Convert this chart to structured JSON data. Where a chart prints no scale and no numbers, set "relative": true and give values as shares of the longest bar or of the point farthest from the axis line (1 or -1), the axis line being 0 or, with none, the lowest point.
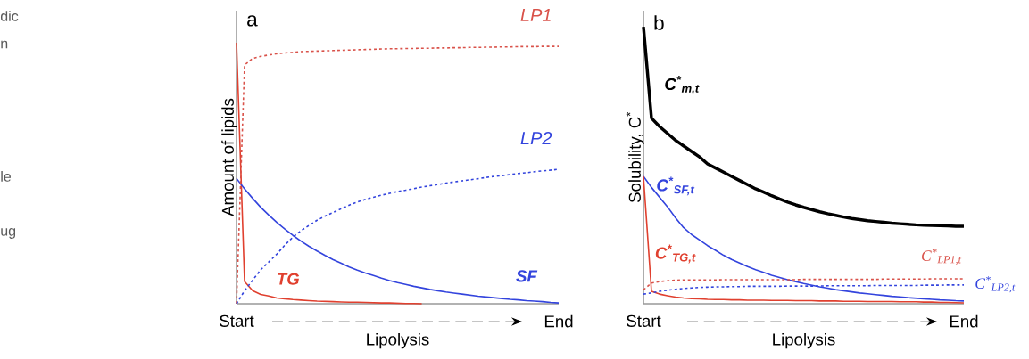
{
  "chart_data": [
    {
      "type": "other",
      "annotations": [
        "dic",
        "n",
        "le",
        "ug"
      ]
    },
    {
      "type": "line",
      "title": "a",
      "xlabel": "Lipolysis",
      "ylabel": "Amount of lipids",
      "relative": true,
      "categories": [
        "Start",
        null,
        null,
        null,
        null,
        null,
        null,
        null,
        null,
        null,
        null,
        null,
        null,
        null,
        null,
        null,
        null,
        null,
        null,
        null,
        null,
        null,
        null,
        null,
        null,
        null,
        null,
        null,
        null,
        null,
        null,
        null,
        null,
        null,
        null,
        null,
        null,
        null,
        null,
        null,
        "End"
      ],
      "series": [
        {
          "name": "TG",
          "color": "#e0402f",
          "line_style": "solid",
          "values": [
            1.0,
            0.085,
            0.05,
            0.036,
            0.03,
            0.022,
            0.019,
            0.016,
            0.014,
            0.012,
            0.01,
            0.009,
            0.008,
            0.007,
            0.006,
            0.006,
            0.005,
            0.004,
            0.003,
            0.003,
            0.002,
            0.001,
            0.001,
            0,
            null,
            null,
            null,
            null,
            null,
            null,
            null,
            null,
            null,
            null,
            null,
            null,
            null,
            null,
            null,
            null,
            null
          ]
        },
        {
          "name": "SF",
          "color": "#3344dd",
          "line_style": "solid",
          "values": [
            0.48,
            0.44,
            0.404,
            0.37,
            0.34,
            0.312,
            0.286,
            0.262,
            0.24,
            0.22,
            0.202,
            0.185,
            0.169,
            0.155,
            0.141,
            0.129,
            0.118,
            0.108,
            0.098,
            0.089,
            0.081,
            0.074,
            0.067,
            0.061,
            0.055,
            0.05,
            0.045,
            0.041,
            0.037,
            0.033,
            0.029,
            0.026,
            0.023,
            0.02,
            0.017,
            0.015,
            0.012,
            0.01,
            0.008,
            0.005,
            0.003
          ]
        },
        {
          "name": "LP1",
          "color": "#d9524a",
          "line_style": "dotted",
          "values": [
            0,
            0.915,
            0.94,
            0.948,
            0.953,
            0.958,
            0.961,
            0.963,
            0.966,
            0.967,
            0.968,
            0.969,
            0.97,
            0.971,
            0.972,
            0.973,
            0.974,
            0.975,
            0.976,
            0.977,
            0.977,
            0.978,
            0.978,
            0.979,
            0.979,
            0.98,
            0.98,
            0.981,
            0.981,
            0.982,
            0.982,
            0.983,
            0.983,
            0.984,
            0.984,
            0.985,
            0.985,
            0.985,
            0.986,
            0.986,
            0.986
          ]
        },
        {
          "name": "LP2",
          "color": "#3344dd",
          "line_style": "dotted",
          "values": [
            0,
            0.05,
            0.09,
            0.13,
            0.16,
            0.19,
            0.225,
            0.255,
            0.28,
            0.3,
            0.32,
            0.336,
            0.35,
            0.364,
            0.378,
            0.39,
            0.4,
            0.408,
            0.416,
            0.423,
            0.43,
            0.435,
            0.441,
            0.447,
            0.452,
            0.457,
            0.462,
            0.467,
            0.471,
            0.475,
            0.479,
            0.484,
            0.488,
            0.491,
            0.495,
            0.499,
            0.502,
            0.506,
            0.509,
            0.512,
            0.515
          ]
        }
      ]
    },
    {
      "type": "line",
      "title": "b",
      "xlabel": "Lipolysis",
      "ylabel": "Solubility, C$^{*}$",
      "relative": true,
      "categories": [
        "Start",
        null,
        null,
        null,
        null,
        null,
        null,
        null,
        null,
        null,
        null,
        null,
        null,
        null,
        null,
        null,
        null,
        null,
        null,
        null,
        null,
        null,
        null,
        null,
        null,
        null,
        null,
        null,
        null,
        null,
        null,
        null,
        null,
        null,
        null,
        null,
        null,
        null,
        null,
        null,
        "End"
      ],
      "series": [
        {
          "name": "C$^{*}$$_{m,t}$",
          "color": "#000000",
          "line_style": "solid",
          "values": [
            1.0,
            0.67,
            0.64,
            0.615,
            0.59,
            0.57,
            0.55,
            0.53,
            0.505,
            0.49,
            0.475,
            0.46,
            0.445,
            0.43,
            0.415,
            0.403,
            0.39,
            0.378,
            0.367,
            0.357,
            0.348,
            0.34,
            0.332,
            0.325,
            0.319,
            0.313,
            0.308,
            0.304,
            0.3,
            0.297,
            0.294,
            0.291,
            0.289,
            0.287,
            0.285,
            0.284,
            0.283,
            0.282,
            0.281,
            0.28,
            0.28
          ]
        },
        {
          "name": "C$^{*}$$_{SF,t}$",
          "color": "#3344dd",
          "line_style": "solid",
          "values": [
            0.46,
            0.42,
            0.385,
            0.35,
            0.31,
            0.275,
            0.25,
            0.23,
            0.21,
            0.193,
            0.175,
            0.16,
            0.147,
            0.134,
            0.123,
            0.113,
            0.103,
            0.095,
            0.087,
            0.08,
            0.073,
            0.067,
            0.061,
            0.056,
            0.051,
            0.047,
            0.043,
            0.039,
            0.036,
            0.033,
            0.03,
            0.027,
            0.025,
            0.022,
            0.02,
            0.018,
            0.016,
            0.014,
            0.013,
            0.011,
            0.01
          ]
        },
        {
          "name": "C$^{*}$$_{TG,t}$",
          "color": "#e0402f",
          "line_style": "solid",
          "values": [
            0.46,
            0.045,
            0.035,
            0.029,
            0.024,
            0.021,
            0.019,
            0.018,
            0.016,
            0.015,
            0.015,
            0.014,
            0.014,
            0.013,
            0.013,
            0.013,
            0.012,
            0.012,
            0.012,
            0.011,
            0.011,
            0.011,
            0.01,
            0.01,
            0.01,
            0.009,
            0.009,
            0.009,
            0.008,
            0.008,
            0.008,
            0.008,
            0.007,
            0.007,
            0.007,
            0.006,
            0.006,
            0.005,
            0.005,
            0.004,
            0.003
          ]
        },
        {
          "name": "C$^{*}$$_{LP1,t}$",
          "color": "#d9524a",
          "line_style": "dotted",
          "values": [
            0.05,
            0.075,
            0.08,
            0.083,
            0.085,
            0.086,
            0.086,
            0.086,
            0.086,
            0.086,
            0.087,
            0.087,
            0.087,
            0.087,
            0.087,
            0.087,
            0.087,
            0.087,
            0.087,
            0.087,
            0.088,
            0.088,
            0.088,
            0.088,
            0.088,
            0.088,
            0.088,
            0.088,
            0.088,
            0.088,
            0.089,
            0.089,
            0.089,
            0.089,
            0.089,
            0.089,
            0.09,
            0.09,
            0.09,
            0.09,
            0.09
          ]
        },
        {
          "name": "C$^{*}$$_{LP2,t}$",
          "color": "#3344dd",
          "line_style": "dotted",
          "values": [
            0.035,
            0.039,
            0.045,
            0.049,
            0.052,
            0.055,
            0.057,
            0.059,
            0.06,
            0.061,
            0.061,
            0.062,
            0.062,
            0.063,
            0.063,
            0.063,
            0.063,
            0.063,
            0.064,
            0.064,
            0.064,
            0.064,
            0.064,
            0.065,
            0.065,
            0.065,
            0.065,
            0.065,
            0.065,
            0.066,
            0.066,
            0.066,
            0.066,
            0.066,
            0.066,
            0.067,
            0.067,
            0.067,
            0.068,
            0.068,
            0.068
          ]
        }
      ]
    }
  ]
}
